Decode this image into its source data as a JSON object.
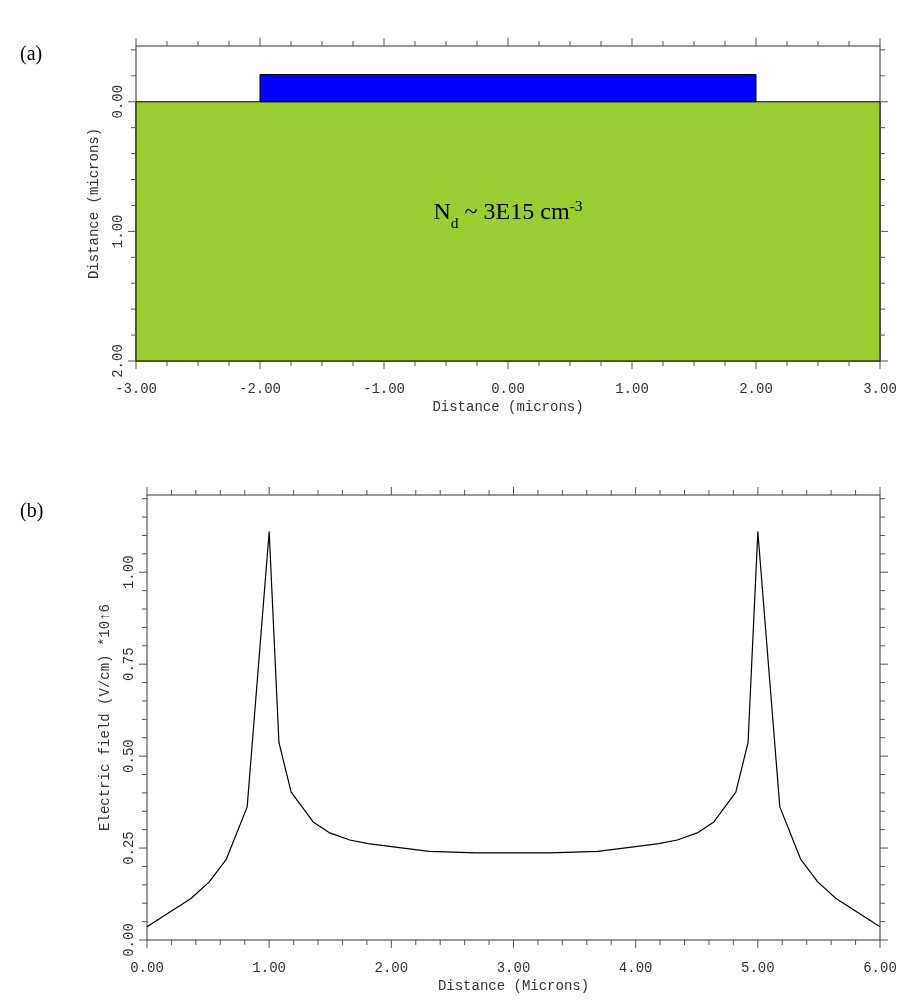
{
  "chart_data": [
    {
      "type": "area",
      "title": "(a)",
      "xlabel": "Distance (microns)",
      "ylabel": "Distance (microns)",
      "xlim": [
        -3,
        3
      ],
      "ylim": [
        2,
        -0.43
      ],
      "xticks": [
        {
          "value": -3,
          "label": "-3.00"
        },
        {
          "value": -2.75,
          "label": null
        },
        {
          "value": -2.5,
          "label": null
        },
        {
          "value": -2.25,
          "label": null
        },
        {
          "value": -2,
          "label": "-2.00"
        },
        {
          "value": -1.75,
          "label": null
        },
        {
          "value": -1.5,
          "label": null
        },
        {
          "value": -1.25,
          "label": null
        },
        {
          "value": -1,
          "label": "-1.00"
        },
        {
          "value": -0.75,
          "label": null
        },
        {
          "value": -0.5,
          "label": null
        },
        {
          "value": -0.25,
          "label": null
        },
        {
          "value": 0,
          "label": "0.00"
        },
        {
          "value": 0.25,
          "label": null
        },
        {
          "value": 0.5,
          "label": null
        },
        {
          "value": 0.75,
          "label": null
        },
        {
          "value": 1,
          "label": "1.00"
        },
        {
          "value": 1.25,
          "label": null
        },
        {
          "value": 1.5,
          "label": null
        },
        {
          "value": 1.75,
          "label": null
        },
        {
          "value": 2,
          "label": "2.00"
        },
        {
          "value": 2.25,
          "label": null
        },
        {
          "value": 2.5,
          "label": null
        },
        {
          "value": 2.75,
          "label": null
        },
        {
          "value": 3,
          "label": "3.00"
        }
      ],
      "yticks": [
        {
          "value": -0.4,
          "label": null
        },
        {
          "value": -0.2,
          "label": null
        },
        {
          "value": 0,
          "label": "0.00"
        },
        {
          "value": 0.2,
          "label": null
        },
        {
          "value": 0.4,
          "label": null
        },
        {
          "value": 0.6,
          "label": null
        },
        {
          "value": 0.8,
          "label": null
        },
        {
          "value": 1,
          "label": "1.00"
        },
        {
          "value": 1.2,
          "label": null
        },
        {
          "value": 1.4,
          "label": null
        },
        {
          "value": 1.6,
          "label": null
        },
        {
          "value": 1.8,
          "label": null
        },
        {
          "value": 2,
          "label": "2.00"
        }
      ],
      "series": [
        {
          "x": [
            -3,
            3
          ],
          "values": [
            2,
            2
          ],
          "color": "#9acd32"
        },
        {
          "x": [
            -2,
            2
          ],
          "values": [
            -0.21,
            -0.21
          ],
          "color": "#0000ff"
        }
      ],
      "annotations": [
        "N$_{d}$ ~ 3E15 cm$^{-3}$"
      ]
    },
    {
      "type": "line",
      "title": "(b)",
      "xlabel": "Distance (Microns)",
      "ylabel": "Electric field (V/cm) *10↑6",
      "xlim": [
        0,
        6
      ],
      "ylim": [
        0,
        1.21
      ],
      "xticks": [
        {
          "value": 0,
          "label": "0.00"
        },
        {
          "value": 0.2,
          "label": null
        },
        {
          "value": 0.4,
          "label": null
        },
        {
          "value": 0.6,
          "label": null
        },
        {
          "value": 0.8,
          "label": null
        },
        {
          "value": 1,
          "label": "1.00"
        },
        {
          "value": 1.2,
          "label": null
        },
        {
          "value": 1.4,
          "label": null
        },
        {
          "value": 1.6,
          "label": null
        },
        {
          "value": 1.8,
          "label": null
        },
        {
          "value": 2,
          "label": "2.00"
        },
        {
          "value": 2.2,
          "label": null
        },
        {
          "value": 2.4,
          "label": null
        },
        {
          "value": 2.6,
          "label": null
        },
        {
          "value": 2.8,
          "label": null
        },
        {
          "value": 3,
          "label": "3.00"
        },
        {
          "value": 3.2,
          "label": null
        },
        {
          "value": 3.4,
          "label": null
        },
        {
          "value": 3.6,
          "label": null
        },
        {
          "value": 3.8,
          "label": null
        },
        {
          "value": 4,
          "label": "4.00"
        },
        {
          "value": 4.2,
          "label": null
        },
        {
          "value": 4.4,
          "label": null
        },
        {
          "value": 4.6,
          "label": null
        },
        {
          "value": 4.8,
          "label": null
        },
        {
          "value": 5,
          "label": "5.00"
        },
        {
          "value": 5.2,
          "label": null
        },
        {
          "value": 5.4,
          "label": null
        },
        {
          "value": 5.6,
          "label": null
        },
        {
          "value": 5.8,
          "label": null
        },
        {
          "value": 6,
          "label": "6.00"
        }
      ],
      "yticks": [
        {
          "value": 0,
          "label": "0.00"
        },
        {
          "value": 0.05,
          "label": null
        },
        {
          "value": 0.1,
          "label": null
        },
        {
          "value": 0.15,
          "label": null
        },
        {
          "value": 0.2,
          "label": null
        },
        {
          "value": 0.25,
          "label": "0.25"
        },
        {
          "value": 0.3,
          "label": null
        },
        {
          "value": 0.35,
          "label": null
        },
        {
          "value": 0.4,
          "label": null
        },
        {
          "value": 0.45,
          "label": null
        },
        {
          "value": 0.5,
          "label": "0.50"
        },
        {
          "value": 0.55,
          "label": null
        },
        {
          "value": 0.6,
          "label": null
        },
        {
          "value": 0.65,
          "label": null
        },
        {
          "value": 0.7,
          "label": null
        },
        {
          "value": 0.75,
          "label": "0.75"
        },
        {
          "value": 0.8,
          "label": null
        },
        {
          "value": 0.85,
          "label": null
        },
        {
          "value": 0.9,
          "label": null
        },
        {
          "value": 0.95,
          "label": null
        },
        {
          "value": 1,
          "label": "1.00"
        },
        {
          "value": 1.05,
          "label": null
        },
        {
          "value": 1.1,
          "label": null
        },
        {
          "value": 1.15,
          "label": null
        },
        {
          "value": 1.2,
          "label": null
        }
      ],
      "series": [
        {
          "color": "#000000",
          "x": [
            0,
            0.36,
            0.51,
            0.65,
            0.82,
            1.0,
            1.08,
            1.18,
            1.36,
            1.49,
            1.66,
            1.81,
            2.05,
            2.31,
            2.7,
            3.0,
            3.3,
            3.69,
            3.95,
            4.19,
            4.34,
            4.51,
            4.64,
            4.82,
            4.92,
            5.0,
            5.18,
            5.35,
            5.49,
            5.64,
            6.0
          ],
          "values": [
            0.036,
            0.113,
            0.158,
            0.22,
            0.362,
            1.11,
            0.537,
            0.402,
            0.321,
            0.292,
            0.272,
            0.262,
            0.252,
            0.241,
            0.237,
            0.237,
            0.237,
            0.241,
            0.252,
            0.262,
            0.272,
            0.292,
            0.321,
            0.402,
            0.537,
            1.11,
            0.362,
            0.22,
            0.158,
            0.113,
            0.036
          ]
        }
      ]
    }
  ]
}
